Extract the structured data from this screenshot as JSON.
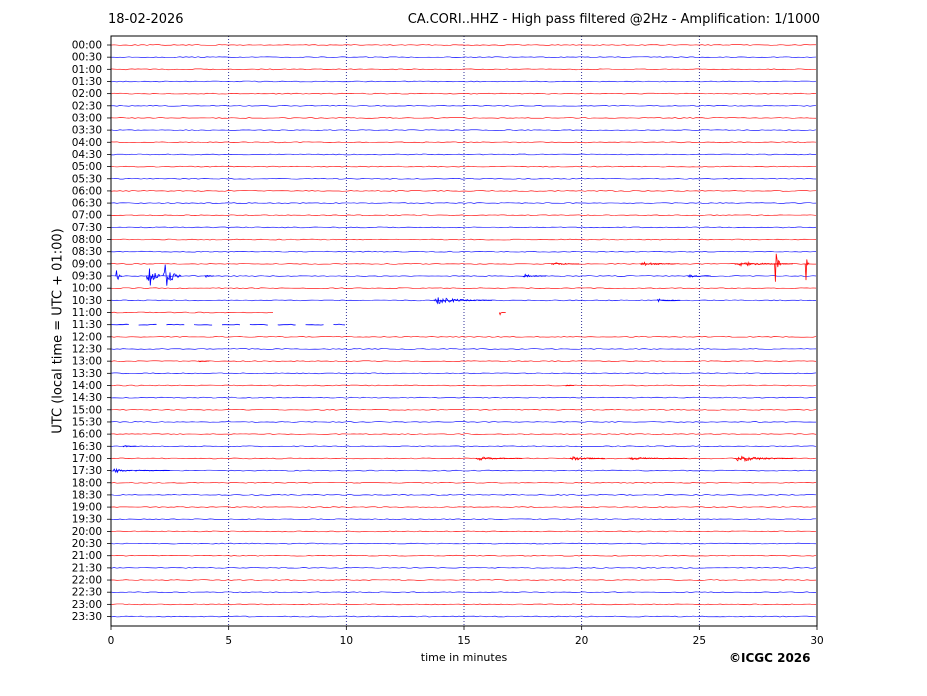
{
  "header": {
    "date": "18-02-2026",
    "title": "CA.CORI..HHZ - High pass filtered @2Hz - Amplification: 1/1000"
  },
  "footer": {
    "copyright": "©ICGC 2026"
  },
  "chart_data": {
    "type": "line",
    "title": "CA.CORI..HHZ - High pass filtered @2Hz - Amplification: 1/1000",
    "xlabel": "time in minutes",
    "ylabel": "UTC (local time = UTC + 01:00)",
    "xlim": [
      0,
      30
    ],
    "x_ticks": [
      0,
      5,
      10,
      15,
      20,
      25,
      30
    ],
    "y_ticks": [
      "00:00",
      "00:30",
      "01:00",
      "01:30",
      "02:00",
      "02:30",
      "03:00",
      "03:30",
      "04:00",
      "04:30",
      "05:00",
      "05:30",
      "06:00",
      "06:30",
      "07:00",
      "07:30",
      "08:00",
      "08:30",
      "09:00",
      "09:30",
      "10:00",
      "10:30",
      "11:00",
      "11:30",
      "12:00",
      "12:30",
      "13:00",
      "13:30",
      "14:00",
      "14:30",
      "15:00",
      "15:30",
      "16:00",
      "16:30",
      "17:00",
      "17:30",
      "18:00",
      "18:30",
      "19:00",
      "19:30",
      "20:00",
      "20:30",
      "21:00",
      "21:30",
      "22:00",
      "22:30",
      "23:00",
      "23:30"
    ],
    "grid_vertical": true,
    "trace_colors": {
      "hour": "#ff0000",
      "half_hour": "#0000ff"
    },
    "recorded_until": {
      "trace": "11:30",
      "minute": 10.0
    },
    "events": [
      {
        "trace": "09:00",
        "minute": 18.7,
        "amplitude": 0.2,
        "duration": 1.2
      },
      {
        "trace": "09:00",
        "minute": 22.5,
        "amplitude": 0.25,
        "duration": 1.5
      },
      {
        "trace": "09:00",
        "minute": 26.5,
        "amplitude": 0.25,
        "duration": 2.5
      },
      {
        "trace": "09:00",
        "minute": 28.2,
        "amplitude": 2.2,
        "duration": 0.3
      },
      {
        "trace": "09:00",
        "minute": 29.5,
        "amplitude": 2.4,
        "duration": 0.2
      },
      {
        "trace": "09:30",
        "minute": 0.2,
        "amplitude": 0.8,
        "duration": 0.3
      },
      {
        "trace": "09:30",
        "minute": 1.5,
        "amplitude": 2.4,
        "duration": 0.6
      },
      {
        "trace": "09:30",
        "minute": 2.2,
        "amplitude": 1.6,
        "duration": 0.8
      },
      {
        "trace": "09:30",
        "minute": 4.0,
        "amplitude": 0.3,
        "duration": 0.4
      },
      {
        "trace": "09:30",
        "minute": 17.5,
        "amplitude": 0.2,
        "duration": 1.0
      },
      {
        "trace": "09:30",
        "minute": 24.5,
        "amplitude": 0.15,
        "duration": 1.0
      },
      {
        "trace": "10:30",
        "minute": 13.7,
        "amplitude": 0.35,
        "duration": 2.5
      },
      {
        "trace": "10:30",
        "minute": 23.2,
        "amplitude": 0.2,
        "duration": 1.0
      },
      {
        "trace": "11:00",
        "minute": 16.5,
        "amplitude": 0.3,
        "duration": 0.3
      },
      {
        "trace": "13:00",
        "minute": 3.7,
        "amplitude": 0.1,
        "duration": 0.5
      },
      {
        "trace": "14:00",
        "minute": 19.3,
        "amplitude": 0.08,
        "duration": 0.4
      },
      {
        "trace": "16:30",
        "minute": 0.5,
        "amplitude": 0.1,
        "duration": 0.6
      },
      {
        "trace": "17:00",
        "minute": 15.5,
        "amplitude": 0.2,
        "duration": 2.0
      },
      {
        "trace": "17:00",
        "minute": 19.5,
        "amplitude": 0.3,
        "duration": 1.5
      },
      {
        "trace": "17:00",
        "minute": 22.0,
        "amplitude": 0.15,
        "duration": 2.5
      },
      {
        "trace": "17:00",
        "minute": 26.5,
        "amplitude": 0.35,
        "duration": 2.5
      },
      {
        "trace": "17:30",
        "minute": 0.1,
        "amplitude": 0.35,
        "duration": 0.8
      },
      {
        "trace": "17:30",
        "minute": 1.0,
        "amplitude": 0.1,
        "duration": 1.5
      }
    ]
  }
}
